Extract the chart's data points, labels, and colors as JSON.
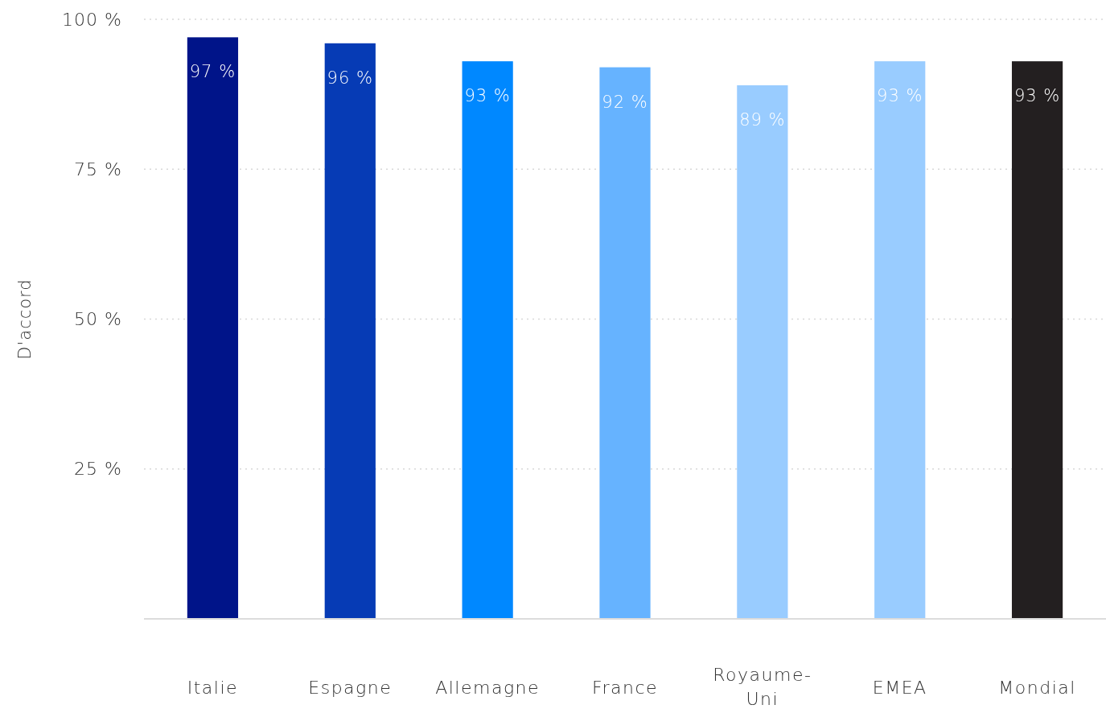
{
  "chart_data": {
    "type": "bar",
    "ylabel": "D'accord",
    "categories": [
      "Italie",
      "Espagne",
      "Allemagne",
      "France",
      "Royaume-Uni",
      "EMEA",
      "Mondial"
    ],
    "values": [
      97,
      96,
      93,
      92,
      89,
      93,
      93
    ],
    "colors": [
      "#001489",
      "#063bb5",
      "#0088ff",
      "#66b3ff",
      "#99ccff",
      "#99ccff",
      "#231f20"
    ],
    "value_labels": [
      "97 %",
      "96 %",
      "93 %",
      "92 %",
      "89 %",
      "93 %",
      "93 %"
    ],
    "ylim": [
      0,
      100
    ],
    "yticks": [
      {
        "value": 25,
        "label": "25 %"
      },
      {
        "value": 50,
        "label": "50 %"
      },
      {
        "value": 75,
        "label": "75 %"
      },
      {
        "value": 100,
        "label": "100 %"
      }
    ],
    "grid": "y"
  }
}
